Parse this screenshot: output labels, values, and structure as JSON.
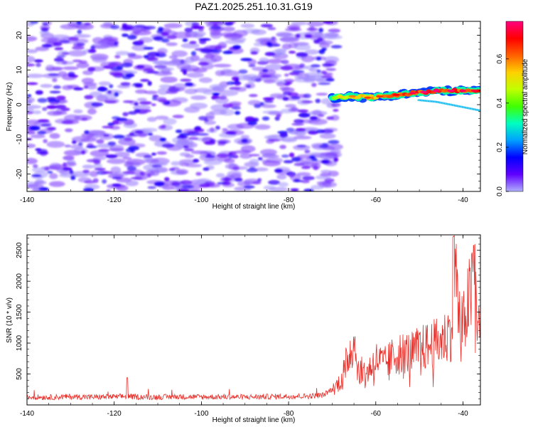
{
  "title": "PAZ1.2025.251.10.31.G19",
  "chart_data": [
    {
      "type": "heatmap",
      "xlabel": "Height of straight line (km)",
      "ylabel": "Frequency (Hz)",
      "xlim": [
        -140,
        -36
      ],
      "ylim": [
        -25,
        24
      ],
      "xticks": [
        -140,
        -120,
        -100,
        -80,
        -60,
        -40
      ],
      "yticks": [
        -20,
        -10,
        0,
        10,
        20
      ],
      "colorbar": {
        "label": "Normalized spectral amplitude",
        "range": [
          0.0,
          0.77
        ],
        "ticks": [
          0.0,
          0.2,
          0.4,
          0.6
        ],
        "tick_labels": [
          "0.0",
          "0.2",
          "0.4",
          "0.6"
        ],
        "colormap": [
          "#b0b0ff",
          "#6000ff",
          "#0000ff",
          "#00a0ff",
          "#00ffc0",
          "#40ff00",
          "#c0ff00",
          "#ffd000",
          "#ff6000",
          "#ff0000",
          "#ff0080"
        ]
      },
      "noise_region": {
        "x_range": [
          -140,
          -69
        ],
        "freq_range": [
          -25,
          24
        ],
        "level_range": [
          0.0,
          0.15
        ]
      },
      "signal_ridge": {
        "x": [
          -70,
          -66,
          -62,
          -58,
          -54,
          -50,
          -46,
          -42,
          -38,
          -36
        ],
        "freq": [
          2.0,
          2.5,
          2.0,
          2.5,
          3.0,
          3.5,
          4.0,
          4.0,
          4.0,
          4.0
        ],
        "amplitude": [
          0.45,
          0.55,
          0.6,
          0.62,
          0.68,
          0.72,
          0.75,
          0.73,
          0.7,
          0.68
        ]
      }
    },
    {
      "type": "line",
      "xlabel": "Height of straight line (km)",
      "ylabel": "SNR (10 * v/v)",
      "xlim": [
        -140,
        -36
      ],
      "ylim": [
        0,
        2750
      ],
      "xticks": [
        -140,
        -120,
        -100,
        -80,
        -60,
        -40
      ],
      "yticks": [
        500,
        1000,
        1500,
        2000,
        2500
      ],
      "color": "#e8302a",
      "series": [
        {
          "x": [
            -140,
            -135,
            -130,
            -125,
            -120,
            -117,
            -115,
            -110,
            -105,
            -100,
            -95,
            -90,
            -85,
            -80,
            -75,
            -72,
            -70,
            -68,
            -66,
            -65,
            -64,
            -62,
            -60,
            -58,
            -56,
            -54,
            -52,
            -50,
            -48,
            -46,
            -44,
            -42.5,
            -42,
            -41,
            -40,
            -39,
            -38,
            -37.5,
            -37,
            -36
          ],
          "y": [
            120,
            115,
            125,
            118,
            122,
            130,
            120,
            118,
            125,
            120,
            122,
            118,
            125,
            130,
            135,
            150,
            250,
            420,
            900,
            1100,
            600,
            550,
            780,
            700,
            820,
            900,
            880,
            950,
            1000,
            1050,
            1150,
            1300,
            2700,
            1500,
            1300,
            1700,
            1900,
            2550,
            1800,
            1100
          ]
        }
      ]
    }
  ]
}
